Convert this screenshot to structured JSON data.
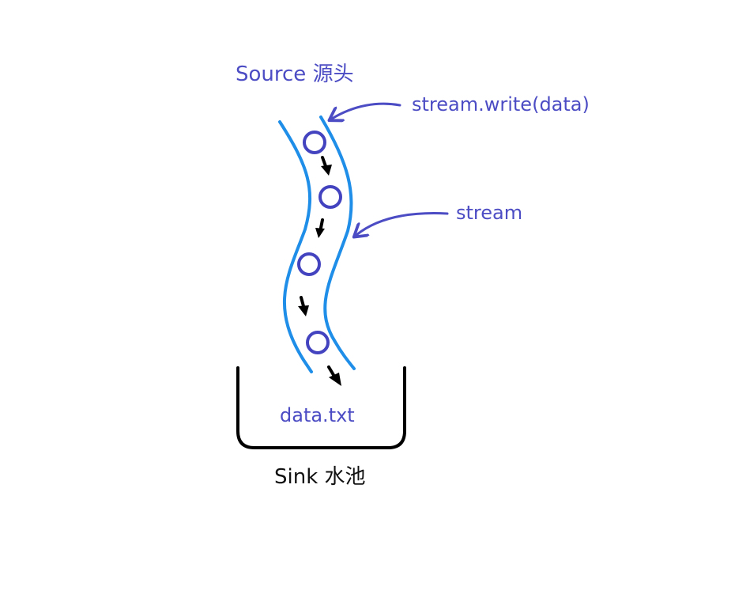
{
  "labels": {
    "source": "Source 源头",
    "write_call": "stream.write(data)",
    "stream": "stream",
    "file": "data.txt",
    "sink": "Sink 水池"
  },
  "colors": {
    "stream_banks": "#1f8ee8",
    "data_chunks": "#4343c0",
    "annotation": "#4c4cc4",
    "flow_arrows": "#000000",
    "sink_outline": "#000000"
  },
  "data_chunks": [
    {
      "name": "data-chunk-1"
    },
    {
      "name": "data-chunk-2"
    },
    {
      "name": "data-chunk-3"
    },
    {
      "name": "data-chunk-4"
    }
  ],
  "flow_arrows": [
    {
      "name": "flow-arrow-1"
    },
    {
      "name": "flow-arrow-2"
    },
    {
      "name": "flow-arrow-3"
    },
    {
      "name": "flow-arrow-4"
    }
  ]
}
